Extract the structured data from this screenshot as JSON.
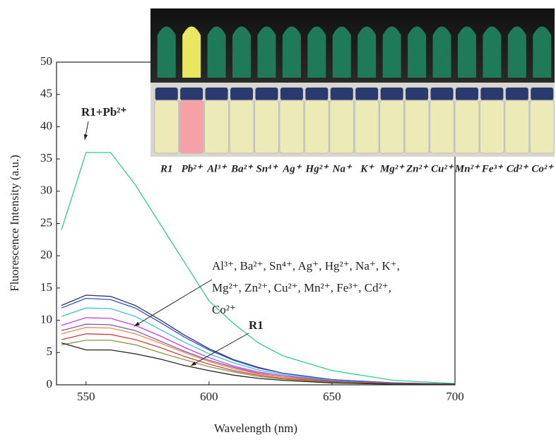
{
  "chart_data": {
    "type": "line",
    "x_label": "Wavelength (nm)",
    "y_label": "Fluorescence Intensity (a.u.)",
    "x": [
      540,
      550,
      560,
      570,
      580,
      590,
      600,
      610,
      620,
      630,
      650,
      675,
      700
    ],
    "xlim": [
      538,
      700
    ],
    "xticks": [
      550,
      600,
      650,
      700
    ],
    "ylim": [
      0,
      50
    ],
    "yticks": [
      0,
      5,
      10,
      15,
      20,
      25,
      30,
      35,
      40,
      45,
      50
    ],
    "series": [
      {
        "color": "#2ecc8a",
        "values": [
          24,
          36,
          36,
          31,
          25,
          19,
          13,
          9.5,
          6.5,
          4.5,
          2.2,
          0.7,
          0.2
        ]
      },
      {
        "color": "#333366",
        "values": [
          12.3,
          13.9,
          13.7,
          12.3,
          10.1,
          7.7,
          5.6,
          3.9,
          2.7,
          1.8,
          0.8,
          0.3,
          0.1
        ]
      },
      {
        "color": "#3050d0",
        "values": [
          11.9,
          13.4,
          13.2,
          11.9,
          9.7,
          7.4,
          5.4,
          3.8,
          2.6,
          1.8,
          0.8,
          0.3,
          0.1
        ]
      },
      {
        "color": "#40c0d0",
        "values": [
          10.6,
          11.9,
          11.8,
          10.6,
          8.6,
          6.6,
          4.8,
          3.4,
          2.3,
          1.6,
          0.7,
          0.2,
          0.1
        ]
      },
      {
        "color": "#d040d0",
        "values": [
          9.2,
          10.4,
          10.3,
          9.2,
          7.6,
          5.8,
          4.2,
          2.9,
          2.0,
          1.4,
          0.6,
          0.2,
          0.1
        ]
      },
      {
        "color": "#8050c0",
        "values": [
          8.4,
          9.4,
          9.3,
          8.4,
          6.8,
          5.2,
          3.8,
          2.7,
          1.8,
          1.2,
          0.6,
          0.2,
          0.1
        ]
      },
      {
        "color": "#e09040",
        "values": [
          7.9,
          8.9,
          8.8,
          7.9,
          6.5,
          5.0,
          3.6,
          2.5,
          1.7,
          1.2,
          0.5,
          0.2,
          0.1
        ]
      },
      {
        "color": "#d04040",
        "values": [
          7.0,
          7.9,
          7.8,
          7.0,
          5.8,
          4.4,
          3.2,
          2.2,
          1.5,
          1.0,
          0.5,
          0.2,
          0.1
        ]
      },
      {
        "color": "#909040",
        "values": [
          6.2,
          6.9,
          6.9,
          6.2,
          5.0,
          3.9,
          2.8,
          2.0,
          1.3,
          0.9,
          0.4,
          0.1,
          0.1
        ]
      },
      {
        "color": "#222222",
        "values": [
          6.5,
          5.4,
          5.4,
          4.8,
          4.0,
          3.0,
          2.2,
          1.5,
          1.0,
          0.7,
          0.3,
          0.1,
          0.1
        ]
      }
    ],
    "annotations": [
      {
        "text": "R1+Pb²⁺"
      },
      {
        "lines": [
          "Al³⁺,  Ba²⁺,  Sn⁴⁺,  Ag⁺,  Hg²⁺,  Na⁺,  K⁺,",
          "Mg²⁺,  Zn²⁺,  Cu²⁺,  Mn²⁺,  Fe³⁺,  Cd²⁺,",
          "Co²⁺"
        ]
      },
      {
        "text": "R1"
      }
    ],
    "inset_labels": [
      "R1",
      "Pb²⁺",
      "Al³⁺",
      "Ba²⁺",
      "Sn⁴⁺",
      "Ag⁺",
      "Hg²⁺",
      "Na⁺",
      "K⁺",
      "Mg²⁺",
      "Zn²⁺",
      "Cu²⁺",
      "Mn²⁺",
      "Fe³⁺",
      "Cd²⁺",
      "Co²⁺"
    ]
  }
}
